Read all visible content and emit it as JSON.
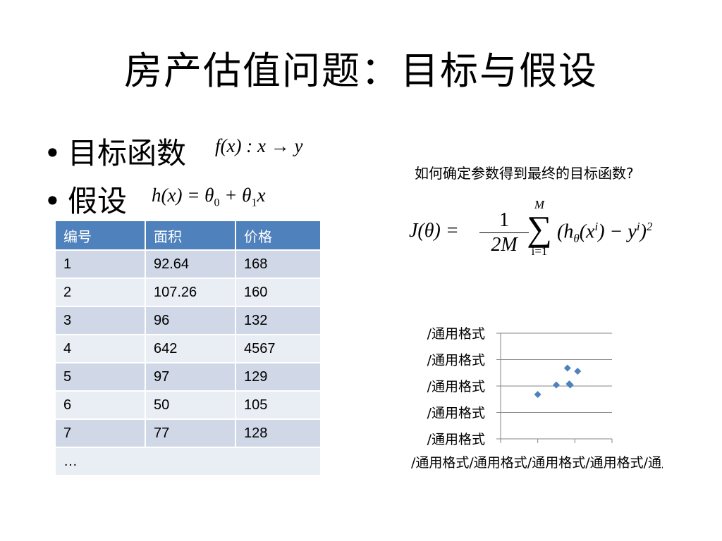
{
  "title": "房产估值问题：目标与假设",
  "bullets": [
    {
      "dot": "•",
      "label": "目标函数",
      "formula": "f(x) : x → y"
    },
    {
      "dot": "•",
      "label": "假设",
      "formula_lhs": "h(x) = θ",
      "formula_sub0": "0",
      "formula_mid": " + θ",
      "formula_sub1": "1",
      "formula_end": "x"
    }
  ],
  "question": "如何确定参数得到最终的目标函数?",
  "table": {
    "headers": [
      "编号",
      "面积",
      "价格"
    ],
    "rows": [
      [
        "1",
        "92.64",
        "168"
      ],
      [
        "2",
        "107.26",
        "160"
      ],
      [
        "3",
        "96",
        "132"
      ],
      [
        "4",
        "642",
        "4567"
      ],
      [
        "5",
        "97",
        "129"
      ],
      [
        "6",
        "50",
        "105"
      ],
      [
        "7",
        "77",
        "128"
      ]
    ],
    "ellipsis": "…"
  },
  "cost_function": {
    "lhs": "J(θ) =",
    "numerator": "1",
    "denominator": "2M",
    "sum_upper": "M",
    "sum_symbol": "∑",
    "sum_lower": "i=1",
    "body": "(h",
    "body_sub": "θ",
    "body_mid": "(x",
    "body_sup_i": "i",
    "body_after": ") − y",
    "body_sup_i2": "i",
    "body_close": ")",
    "body_sup_2": "2"
  },
  "chart_data": {
    "type": "scatter",
    "y_tick_labels": [
      "/通用格式",
      "/通用格式",
      "/通用格式",
      "/通用格式",
      "/通用格式"
    ],
    "x_tick_label_overlap": "/通用格式/通用格式/通用格式/通用格式/通用格式",
    "grid": true,
    "xlim": [
      0,
      6
    ],
    "ylim": [
      0,
      5
    ],
    "marker_color": "#4f81bd",
    "points": [
      {
        "x": 2.0,
        "y": 2.1
      },
      {
        "x": 3.0,
        "y": 2.55
      },
      {
        "x": 3.7,
        "y": 2.6
      },
      {
        "x": 3.75,
        "y": 2.55
      },
      {
        "x": 3.6,
        "y": 3.35
      },
      {
        "x": 4.15,
        "y": 3.2
      }
    ]
  }
}
